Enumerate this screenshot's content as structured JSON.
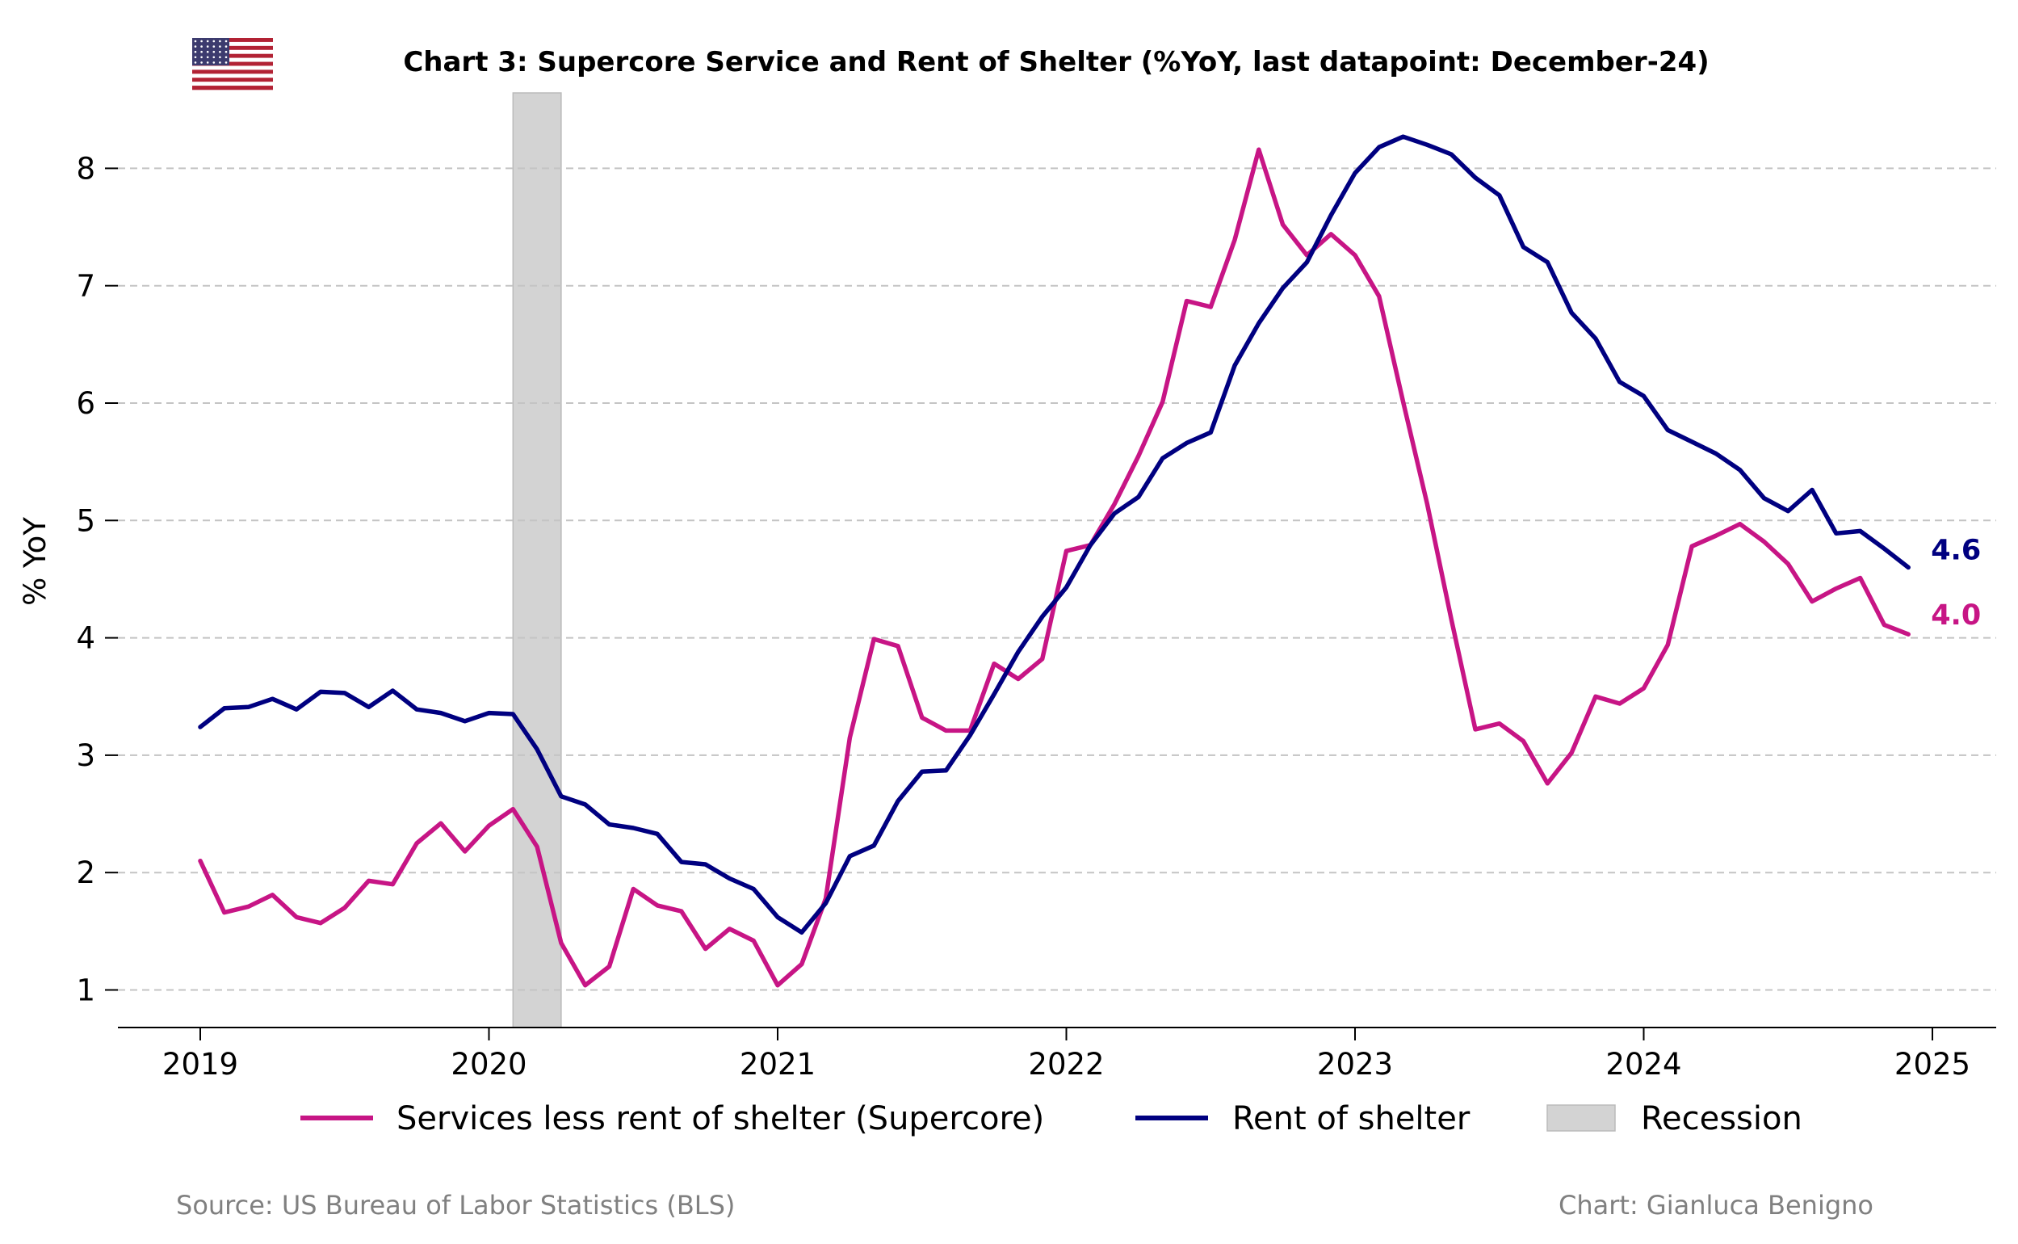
{
  "chart_data": {
    "type": "line",
    "title": "Chart 3: Supercore Service and Rent of Shelter (%YoY, last datapoint: December-24)",
    "ylabel": "% YoY",
    "xlabel": "",
    "ylim": [
      0.67,
      8.6
    ],
    "yticks": [
      1,
      2,
      3,
      4,
      5,
      6,
      7,
      8
    ],
    "xticks": [
      "2019",
      "2020",
      "2021",
      "2022",
      "2023",
      "2024",
      "2025"
    ],
    "grid": "horizontal dashed",
    "legend_position": "bottom-center",
    "start_month": "2019-01",
    "series": [
      {
        "name": "Services less rent of shelter (Supercore)",
        "color": "#C71585",
        "end_label": "4.0",
        "values": [
          2.1,
          1.66,
          1.71,
          1.81,
          1.62,
          1.57,
          1.7,
          1.93,
          1.9,
          2.25,
          2.42,
          2.18,
          2.4,
          2.54,
          2.22,
          1.4,
          1.04,
          1.2,
          1.86,
          1.72,
          1.67,
          1.35,
          1.52,
          1.42,
          1.04,
          1.22,
          1.78,
          3.15,
          3.99,
          3.93,
          3.32,
          3.21,
          3.21,
          3.78,
          3.65,
          3.82,
          4.74,
          4.79,
          5.14,
          5.55,
          6.01,
          6.87,
          6.82,
          7.39,
          8.16,
          7.52,
          7.26,
          7.44,
          7.26,
          6.91,
          6.01,
          5.14,
          4.16,
          3.22,
          3.27,
          3.12,
          2.76,
          3.02,
          3.5,
          3.44,
          3.57,
          3.94,
          4.78,
          4.87,
          4.97,
          4.82,
          4.63,
          4.31,
          4.42,
          4.51,
          4.11,
          4.03
        ]
      },
      {
        "name": "Rent of shelter",
        "color": "#000080",
        "end_label": "4.6",
        "values": [
          3.24,
          3.4,
          3.41,
          3.48,
          3.39,
          3.54,
          3.53,
          3.41,
          3.55,
          3.39,
          3.36,
          3.29,
          3.36,
          3.35,
          3.05,
          2.65,
          2.58,
          2.41,
          2.38,
          2.33,
          2.09,
          2.07,
          1.95,
          1.86,
          1.62,
          1.49,
          1.74,
          2.14,
          2.23,
          2.61,
          2.86,
          2.87,
          3.17,
          3.52,
          3.88,
          4.18,
          4.43,
          4.79,
          5.06,
          5.2,
          5.53,
          5.66,
          5.75,
          6.32,
          6.68,
          6.98,
          7.2,
          7.6,
          7.96,
          8.18,
          8.27,
          8.2,
          8.12,
          7.92,
          7.77,
          7.33,
          7.2,
          6.77,
          6.55,
          6.18,
          6.06,
          5.77,
          5.67,
          5.57,
          5.43,
          5.19,
          5.08,
          5.26,
          4.89,
          4.91,
          4.76,
          4.6
        ]
      }
    ],
    "recession": {
      "name": "Recession",
      "color": "#D3D3D3",
      "start": "2020-02",
      "end": "2020-04"
    }
  },
  "footer": {
    "source": "Source: US Bureau of Labor Statistics (BLS)",
    "credit": "Chart: Gianluca Benigno"
  },
  "flag_icon": "us-flag-icon"
}
